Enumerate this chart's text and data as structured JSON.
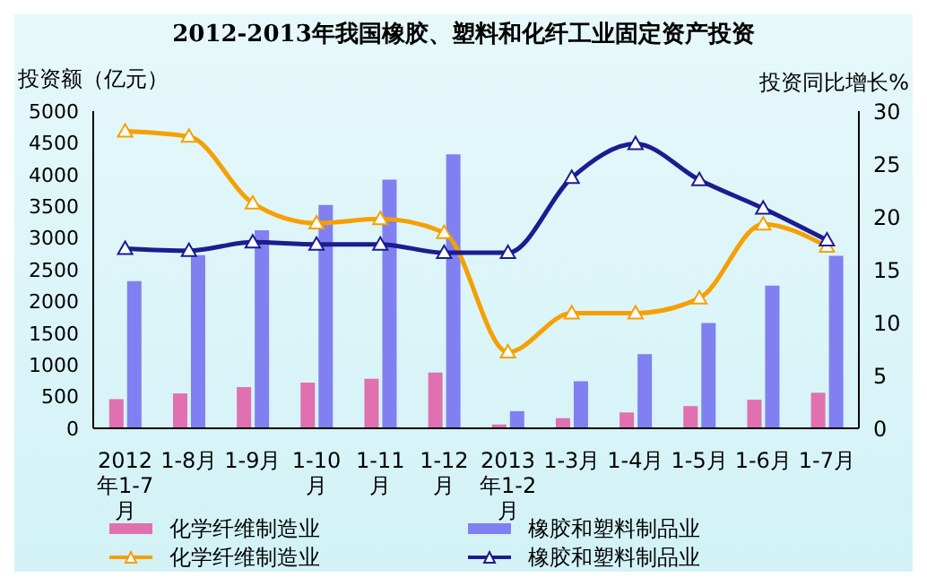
{
  "chart_data": {
    "type": "bar",
    "title": "2012-2013年我国橡胶、塑料和化纤工业固定资产投资",
    "ylabel": "投资额（亿元）",
    "y2label": "投资同比增长%",
    "categories": [
      "2012年1-7月",
      "1-8月",
      "1-9月",
      "1-10月",
      "1-11月",
      "1-12月",
      "2013年1-2月",
      "1-3月",
      "1-4月",
      "1-5月",
      "1-6月",
      "1-7月"
    ],
    "series": [
      {
        "name": "化学纤维制造业",
        "color": "#e070b0",
        "values": [
          460,
          550,
          650,
          720,
          780,
          880,
          60,
          160,
          250,
          350,
          450,
          560
        ]
      },
      {
        "name": "橡胶和塑料制品业",
        "color": "#8080f0",
        "values": [
          2320,
          2730,
          3120,
          3520,
          3920,
          4320,
          270,
          740,
          1170,
          1660,
          2250,
          2720
        ]
      },
      {
        "name": "化学纤维制造业",
        "type": "line",
        "axis": "y2",
        "color": "#f5a000",
        "marker": "triangle",
        "values": [
          28.1,
          27.6,
          21.3,
          19.4,
          19.8,
          18.5,
          7.2,
          10.9,
          10.9,
          12.3,
          19.3,
          17.2
        ]
      },
      {
        "name": "橡胶和塑料制品业",
        "type": "line",
        "axis": "y2",
        "color": "#1c1c90",
        "marker": "triangle",
        "values": [
          17.0,
          16.8,
          17.6,
          17.4,
          17.4,
          16.6,
          16.6,
          23.7,
          26.9,
          23.5,
          20.8,
          17.8
        ]
      }
    ],
    "ylim": [
      0,
      5000
    ],
    "yticks": [
      0,
      500,
      1000,
      1500,
      2000,
      2500,
      3000,
      3500,
      4000,
      4500,
      5000
    ],
    "y2lim": [
      0,
      30
    ],
    "y2ticks": [
      0,
      5,
      10,
      15,
      20,
      25,
      30
    ],
    "grid": false,
    "legend": "bottom"
  }
}
